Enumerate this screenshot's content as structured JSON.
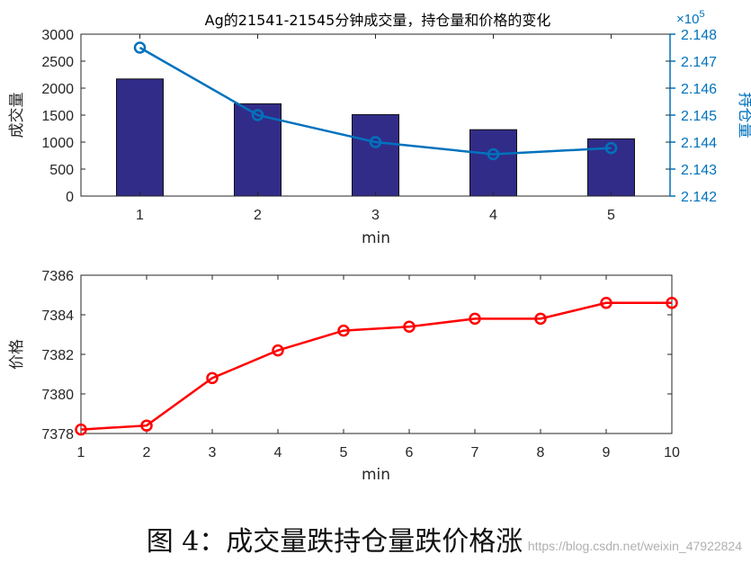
{
  "chart_data": [
    {
      "type": "bar",
      "title": "Ag的21541-21545分钟成交量，持仓量和价格的变化",
      "xlabel": "min",
      "ylabel": "成交量",
      "ylabel_right": "持仓量",
      "right_exponent": "×10",
      "right_exponent_power": "5",
      "categories": [
        "1",
        "2",
        "3",
        "4",
        "5"
      ],
      "x": [
        1,
        2,
        3,
        4,
        5
      ],
      "xticks": [
        "1",
        "2",
        "3",
        "4",
        "5"
      ],
      "xlim": [
        0.5,
        5.5
      ],
      "ylim": [
        0,
        3000
      ],
      "yticks": [
        "0",
        "500",
        "1000",
        "1500",
        "2000",
        "2500",
        "3000"
      ],
      "ylim_right": [
        2.142,
        2.148
      ],
      "yticks_right": [
        "2.142",
        "2.143",
        "2.144",
        "2.145",
        "2.146",
        "2.147",
        "2.148"
      ],
      "series": [
        {
          "values": [
            2170,
            1710,
            1510,
            1230,
            1060
          ],
          "type": "bar",
          "axis": "left",
          "color": "#312c88"
        },
        {
          "values": [
            2.1475,
            2.145,
            2.144,
            2.14355,
            2.14378
          ],
          "type": "line",
          "axis": "right",
          "color": "#0072bd",
          "marker": "circle"
        }
      ]
    },
    {
      "type": "line",
      "xlabel": "min",
      "ylabel": "价格",
      "x": [
        1,
        2,
        3,
        4,
        5,
        6,
        7,
        8,
        9,
        10
      ],
      "xticks": [
        "1",
        "2",
        "3",
        "4",
        "5",
        "6",
        "7",
        "8",
        "9",
        "10"
      ],
      "xlim": [
        1,
        10
      ],
      "ylim": [
        7378,
        7386
      ],
      "yticks": [
        "7378",
        "7380",
        "7382",
        "7384",
        "7386"
      ],
      "series": [
        {
          "values": [
            7378.2,
            7378.4,
            7380.8,
            7382.2,
            7383.2,
            7383.4,
            7383.8,
            7383.8,
            7384.6,
            7384.6
          ],
          "color": "#ff0000",
          "marker": "circle"
        }
      ]
    }
  ],
  "caption": "图 4：成交量跌持仓量跌价格涨",
  "watermark": "https://blog.csdn.net/weixin_47922824"
}
